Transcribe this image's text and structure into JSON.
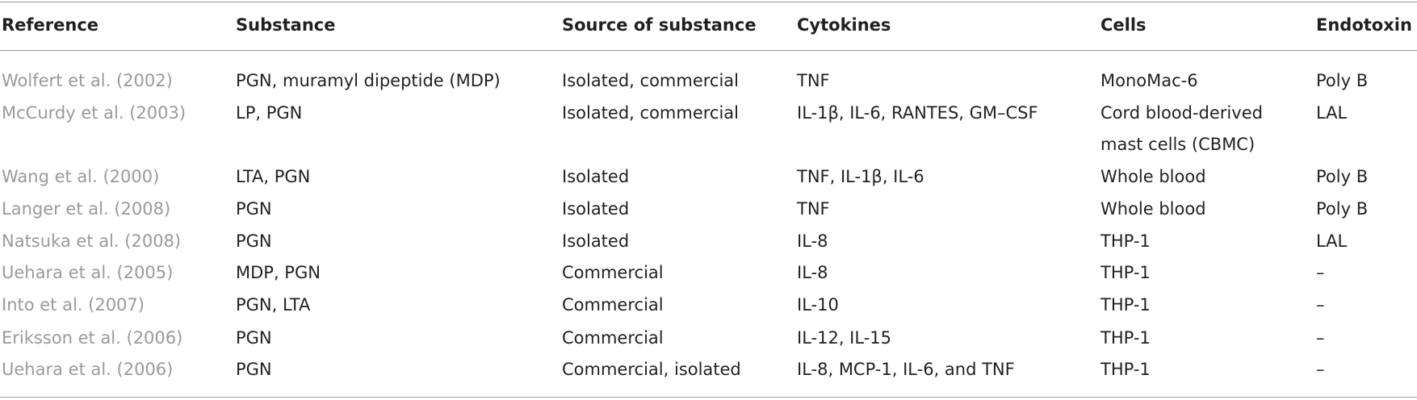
{
  "table": {
    "header": [
      "Reference",
      "Substance",
      "Source of substance",
      "Cytokines",
      "Cells",
      "Endotoxin"
    ],
    "rows": [
      [
        "Wolfert et al. (2002)",
        "PGN, muramyl dipeptide (MDP)",
        "Isolated, commercial",
        "TNF",
        "MonoMac-6",
        "Poly B"
      ],
      [
        "McCurdy et al. (2003)",
        "LP, PGN",
        "Isolated, commercial",
        "IL-1β, IL-6, RANTES, GM–CSF",
        "Cord blood-derived mast cells (CBMC)",
        "LAL"
      ],
      [
        "Wang et al. (2000)",
        "LTA, PGN",
        "Isolated",
        "TNF, IL-1β, IL-6",
        "Whole blood",
        "Poly B"
      ],
      [
        "Langer et al. (2008)",
        "PGN",
        "Isolated",
        "TNF",
        "Whole blood",
        "Poly B"
      ],
      [
        "Natsuka et al. (2008)",
        "PGN",
        "Isolated",
        "IL-8",
        "THP-1",
        "LAL"
      ],
      [
        "Uehara et al. (2005)",
        "MDP, PGN",
        "Commercial",
        "IL-8",
        "THP-1",
        "–"
      ],
      [
        "Into et al. (2007)",
        "PGN, LTA",
        "Commercial",
        "IL-10",
        "THP-1",
        "–"
      ],
      [
        "Eriksson et al. (2006)",
        "PGN",
        "Commercial",
        "IL-12, IL-15",
        "THP-1",
        "–"
      ],
      [
        "Uehara et al. (2006)",
        "PGN",
        "Commercial, isolated",
        "IL-8, MCP-1, IL-6, and TNF",
        "THP-1",
        "–"
      ]
    ]
  }
}
